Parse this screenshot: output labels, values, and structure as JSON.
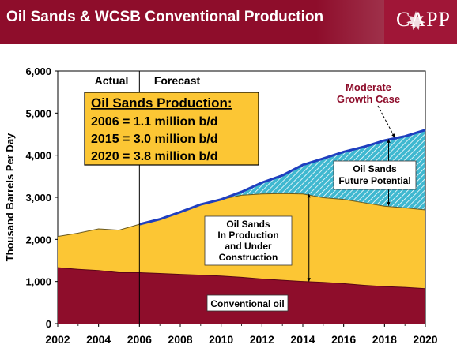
{
  "header": {
    "title": "Oil Sands & WCSB Conventional Production",
    "logo": "CAPP",
    "logo_icon": "maple-leaf-icon"
  },
  "colors": {
    "brand": "#8e0d2b",
    "conventional": "#8e0d2b",
    "oil_sands": "#fcc634",
    "future_potential": "#3fb8d0",
    "growth_line": "#1f3fbf",
    "plot_bg": "#ffffff"
  },
  "chart_data": {
    "type": "area",
    "ylabel": "Thousand Barrels Per Day",
    "xlabel": "",
    "ylim": [
      0,
      6000
    ],
    "xlim": [
      2002,
      2020
    ],
    "y_ticks": [
      "0",
      "1,000",
      "2,000",
      "3,000",
      "4,000",
      "5,000",
      "6,000"
    ],
    "x_ticks": [
      "2002",
      "2004",
      "2006",
      "2008",
      "2010",
      "2012",
      "2014",
      "2016",
      "2018",
      "2020"
    ],
    "x": [
      2002,
      2003,
      2004,
      2005,
      2006,
      2007,
      2008,
      2009,
      2010,
      2011,
      2012,
      2013,
      2014,
      2015,
      2016,
      2017,
      2018,
      2019,
      2020
    ],
    "series": [
      {
        "name": "Conventional oil",
        "values": [
          1330,
          1290,
          1260,
          1210,
          1210,
          1190,
          1170,
          1150,
          1130,
          1100,
          1060,
          1030,
          1000,
          980,
          950,
          910,
          880,
          860,
          830
        ]
      },
      {
        "name": "Oil Sands In Production and Under Construction",
        "values": [
          2070,
          2150,
          2250,
          2220,
          2360,
          2480,
          2650,
          2830,
          2950,
          3050,
          3080,
          3090,
          3080,
          2990,
          2950,
          2870,
          2790,
          2750,
          2700
        ]
      },
      {
        "name": "Oil Sands Future Potential",
        "values": [
          2070,
          2150,
          2250,
          2220,
          2360,
          2480,
          2650,
          2830,
          2950,
          3130,
          3350,
          3520,
          3770,
          3920,
          4080,
          4200,
          4350,
          4450,
          4600
        ]
      }
    ],
    "divider_year": 2006,
    "region_labels": {
      "actual": "Actual",
      "forecast": "Forecast"
    },
    "annotations": {
      "production_box": {
        "title": "Oil Sands Production:",
        "lines": [
          "2006 = 1.1 million b/d",
          "2015 = 3.0 million b/d",
          "2020 = 3.8 million b/d"
        ]
      },
      "moderate_growth": [
        "Moderate",
        "Growth Case"
      ],
      "future_potential": [
        "Oil Sands",
        "Future Potential"
      ],
      "in_production": [
        "Oil Sands",
        "In Production",
        "and Under",
        "Construction"
      ],
      "conventional": "Conventional oil"
    },
    "grid": false
  }
}
